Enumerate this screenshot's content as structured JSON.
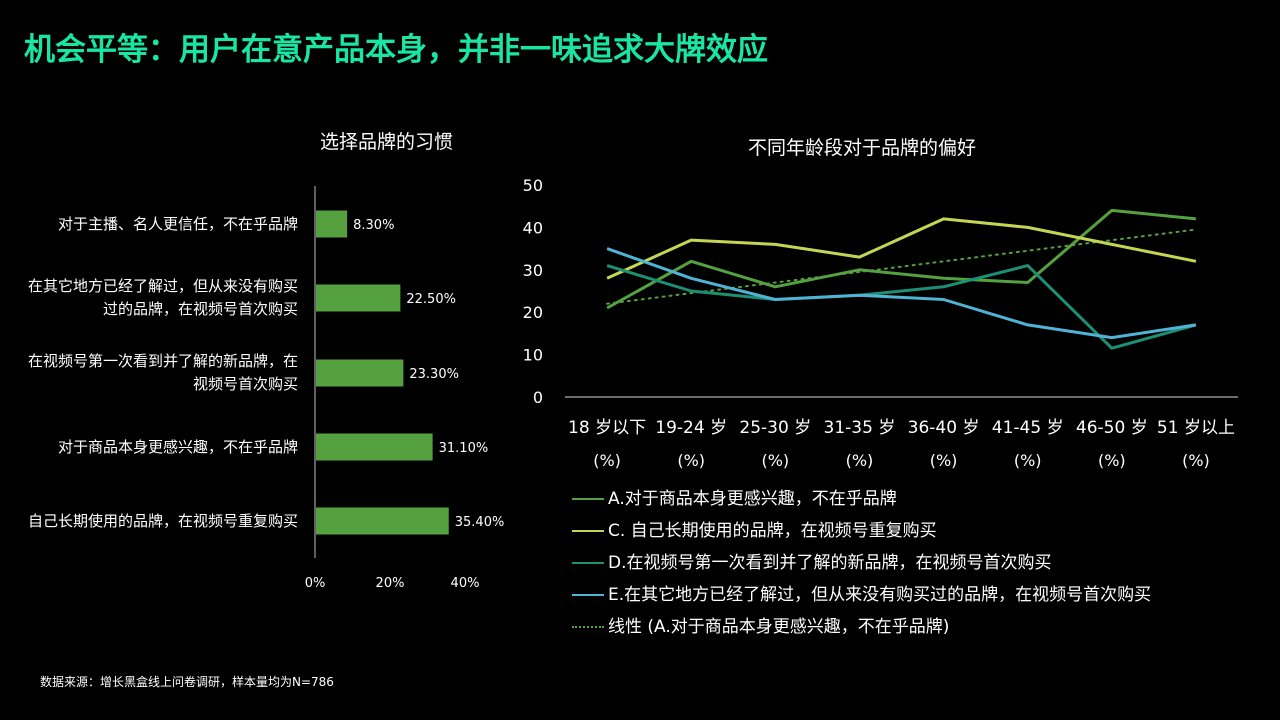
{
  "page": {
    "title": "机会平等：用户在意产品本身，并非一味追求大牌效应",
    "footer": "数据来源：增长黑盒线上问卷调研，样本量均为N=786"
  },
  "colors": {
    "background": "#000000",
    "title": "#19e6a4",
    "bar": "#55a03f"
  },
  "chart_data": [
    {
      "type": "bar",
      "orientation": "horizontal",
      "title": "选择品牌的习惯",
      "categories": [
        "对于主播、名人更信任，不在乎品牌",
        "在其它地方已经了解过，但从来没有购买过的品牌，在视频号首次购买",
        "在视频号第一次看到并了解的新品牌，在视频号首次购买",
        "对于商品本身更感兴趣，不在乎品牌",
        "自己长期使用的品牌，在视频号重复购买"
      ],
      "category_lines": [
        [
          "对于主播、名人更信任，不在乎品牌"
        ],
        [
          "在其它地方已经了解过，但从来没有购买",
          "过的品牌，在视频号首次购买"
        ],
        [
          "在视频号第一次看到并了解的新品牌，在",
          "视频号首次购买"
        ],
        [
          "对于商品本身更感兴趣，不在乎品牌"
        ],
        [
          "自己长期使用的品牌，在视频号重复购买"
        ]
      ],
      "values": [
        8.3,
        22.5,
        23.3,
        31.1,
        35.4
      ],
      "value_labels": [
        "8.30%",
        "22.50%",
        "23.30%",
        "31.10%",
        "35.40%"
      ],
      "xticks": [
        "0%",
        "20%",
        "40%"
      ],
      "xlim": [
        0,
        40
      ],
      "grid": false
    },
    {
      "type": "line",
      "title": "不同年龄段对于品牌的偏好",
      "categories": [
        "18 岁以下",
        "19-24 岁",
        "25-30 岁",
        "31-35 岁",
        "36-40 岁",
        "41-45 岁",
        "46-50 岁",
        "51 岁以上"
      ],
      "category_unit": "(%)",
      "ylim": [
        0,
        50
      ],
      "yticks": [
        "0",
        "10",
        "20",
        "30",
        "40",
        "50"
      ],
      "grid": false,
      "legend_position": "bottom",
      "series": [
        {
          "name": "A.对于商品本身更感兴趣，不在乎品牌",
          "color": "#55a03f",
          "values": [
            21,
            32,
            26,
            30,
            28,
            27,
            44,
            42
          ]
        },
        {
          "name": "C. 自己长期使用的品牌，在视频号重复购买",
          "color": "#c3d553",
          "values": [
            28,
            37,
            36,
            33,
            42,
            40,
            36,
            32
          ]
        },
        {
          "name": "D.在视频号第一次看到并了解的新品牌，在视频号首次购买",
          "color": "#1d8f74",
          "values": [
            31,
            25,
            23,
            24,
            26,
            31,
            11.5,
            17
          ]
        },
        {
          "name": "E.在其它地方已经了解过，但从来没有购买过的品牌，在视频号首次购买",
          "color": "#4fb3d6",
          "values": [
            35,
            28,
            23,
            24,
            23,
            17,
            14,
            17
          ]
        }
      ],
      "trendline": {
        "name": "线性 (A.对于商品本身更感兴趣，不在乎品牌)",
        "color": "#55a03f",
        "style": "dotted",
        "start": 22,
        "end": 39.5
      }
    }
  ]
}
